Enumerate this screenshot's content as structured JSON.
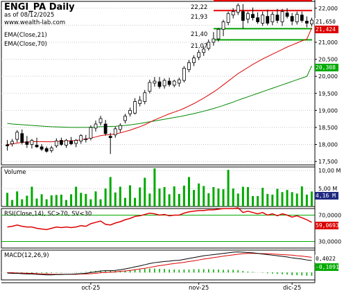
{
  "chart_data": {
    "type": "candlestick",
    "title": "ENGI_PA Daily",
    "as_of": "as of 08/12/2025",
    "source": "www.wealth-lab.com",
    "x_tick_labels": [
      "oct-25",
      "nov-25",
      "dic-25"
    ],
    "price_panel": {
      "ylim": [
        17400,
        22200
      ],
      "y_tick_labels": [
        "17,500",
        "18,000",
        "18,500",
        "19,000",
        "19,500",
        "20,000",
        "20,500",
        "21,000",
        "21,500",
        "22,000"
      ],
      "indicator_labels": [
        "EMA(Close,21)",
        "EMA(Close,70)"
      ],
      "level_labels": [
        "22,22",
        "21,93",
        "21,40",
        "21,07"
      ],
      "levels": [
        {
          "value": 22.22,
          "color": "#e60000"
        },
        {
          "value": 21.93,
          "color": "#e60000"
        },
        {
          "value": 21.4,
          "color": "#00a000"
        },
        {
          "value": 21.07,
          "color": "#00a000"
        }
      ],
      "last_price_tag": "21,650",
      "ema21_tag": "21,424",
      "ema70_tag": "20,308",
      "candles": [
        {
          "o": 17990,
          "h": 18130,
          "l": 17820,
          "c": 17960
        },
        {
          "o": 18020,
          "h": 18160,
          "l": 17940,
          "c": 18090
        },
        {
          "o": 18150,
          "h": 18420,
          "l": 18060,
          "c": 18360
        },
        {
          "o": 18320,
          "h": 18440,
          "l": 18000,
          "c": 18060
        },
        {
          "o": 18080,
          "h": 18250,
          "l": 17900,
          "c": 18000
        },
        {
          "o": 18000,
          "h": 18160,
          "l": 17880,
          "c": 18120
        },
        {
          "o": 17980,
          "h": 18200,
          "l": 17900,
          "c": 17930
        },
        {
          "o": 17930,
          "h": 18010,
          "l": 17810,
          "c": 17860
        },
        {
          "o": 17880,
          "h": 17940,
          "l": 17760,
          "c": 17800
        },
        {
          "o": 17820,
          "h": 17960,
          "l": 17760,
          "c": 17900
        },
        {
          "o": 17960,
          "h": 18180,
          "l": 17900,
          "c": 18100
        },
        {
          "o": 18120,
          "h": 18200,
          "l": 17960,
          "c": 18000
        },
        {
          "o": 17980,
          "h": 18160,
          "l": 17900,
          "c": 18120
        },
        {
          "o": 18100,
          "h": 18220,
          "l": 17980,
          "c": 18020
        },
        {
          "o": 18030,
          "h": 18160,
          "l": 17920,
          "c": 18120
        },
        {
          "o": 18100,
          "h": 18300,
          "l": 18020,
          "c": 18260
        },
        {
          "o": 18140,
          "h": 18280,
          "l": 18060,
          "c": 18160
        },
        {
          "o": 18180,
          "h": 18560,
          "l": 18120,
          "c": 18500
        },
        {
          "o": 18480,
          "h": 18700,
          "l": 18380,
          "c": 18600
        },
        {
          "o": 18640,
          "h": 18840,
          "l": 18560,
          "c": 18760
        },
        {
          "o": 18600,
          "h": 18720,
          "l": 18260,
          "c": 18320
        },
        {
          "o": 18240,
          "h": 18340,
          "l": 17720,
          "c": 18200
        },
        {
          "o": 18280,
          "h": 18520,
          "l": 18200,
          "c": 18460
        },
        {
          "o": 18440,
          "h": 18620,
          "l": 18360,
          "c": 18560
        },
        {
          "o": 18700,
          "h": 18900,
          "l": 18620,
          "c": 18830
        },
        {
          "o": 18900,
          "h": 19080,
          "l": 18820,
          "c": 19000
        },
        {
          "o": 18920,
          "h": 19360,
          "l": 18880,
          "c": 19260
        },
        {
          "o": 19200,
          "h": 19420,
          "l": 19120,
          "c": 19300
        },
        {
          "o": 19260,
          "h": 19600,
          "l": 19180,
          "c": 19520
        },
        {
          "o": 19560,
          "h": 19900,
          "l": 19500,
          "c": 19820
        },
        {
          "o": 19800,
          "h": 19980,
          "l": 19700,
          "c": 19860
        },
        {
          "o": 19840,
          "h": 19980,
          "l": 19640,
          "c": 19700
        },
        {
          "o": 19720,
          "h": 19940,
          "l": 19640,
          "c": 19880
        },
        {
          "o": 19860,
          "h": 19960,
          "l": 19700,
          "c": 19760
        },
        {
          "o": 19740,
          "h": 19900,
          "l": 19680,
          "c": 19860
        },
        {
          "o": 19800,
          "h": 19960,
          "l": 19700,
          "c": 19900
        },
        {
          "o": 19880,
          "h": 20300,
          "l": 19820,
          "c": 20240
        },
        {
          "o": 20200,
          "h": 20480,
          "l": 20120,
          "c": 20400
        },
        {
          "o": 20400,
          "h": 20620,
          "l": 20300,
          "c": 20540
        },
        {
          "o": 20560,
          "h": 20780,
          "l": 20480,
          "c": 20700
        },
        {
          "o": 20700,
          "h": 20880,
          "l": 20600,
          "c": 20800
        },
        {
          "o": 20820,
          "h": 21080,
          "l": 20760,
          "c": 21000
        },
        {
          "o": 21000,
          "h": 21300,
          "l": 20900,
          "c": 21100
        },
        {
          "o": 21100,
          "h": 21420,
          "l": 21020,
          "c": 21380
        },
        {
          "o": 21380,
          "h": 21660,
          "l": 21180,
          "c": 21600
        },
        {
          "o": 21580,
          "h": 21900,
          "l": 21500,
          "c": 21840
        },
        {
          "o": 21800,
          "h": 22000,
          "l": 21700,
          "c": 21900
        },
        {
          "o": 21880,
          "h": 22140,
          "l": 21800,
          "c": 22080
        },
        {
          "o": 21900,
          "h": 22120,
          "l": 21400,
          "c": 21640
        },
        {
          "o": 21680,
          "h": 21900,
          "l": 21560,
          "c": 21840
        },
        {
          "o": 21820,
          "h": 22020,
          "l": 21640,
          "c": 21720
        },
        {
          "o": 21720,
          "h": 21880,
          "l": 21540,
          "c": 21600
        },
        {
          "o": 21560,
          "h": 21900,
          "l": 21480,
          "c": 21800
        },
        {
          "o": 21760,
          "h": 21960,
          "l": 21500,
          "c": 21560
        },
        {
          "o": 21600,
          "h": 21900,
          "l": 21500,
          "c": 21820
        },
        {
          "o": 21800,
          "h": 21980,
          "l": 21560,
          "c": 21640
        },
        {
          "o": 21600,
          "h": 21980,
          "l": 21480,
          "c": 21900
        },
        {
          "o": 21860,
          "h": 22000,
          "l": 21700,
          "c": 21760
        },
        {
          "o": 21760,
          "h": 21860,
          "l": 21500,
          "c": 21620
        },
        {
          "o": 21600,
          "h": 21900,
          "l": 21520,
          "c": 21820
        },
        {
          "o": 21800,
          "h": 21900,
          "l": 21580,
          "c": 21640
        },
        {
          "o": 21620,
          "h": 21760,
          "l": 21440,
          "c": 21560
        },
        {
          "o": 21540,
          "h": 21720,
          "l": 21460,
          "c": 21650
        }
      ],
      "ema21": [
        18000,
        18015,
        18040,
        18060,
        18070,
        18080,
        18085,
        18085,
        18080,
        18080,
        18090,
        18095,
        18100,
        18110,
        18120,
        18140,
        18160,
        18190,
        18220,
        18260,
        18280,
        18290,
        18310,
        18340,
        18380,
        18420,
        18470,
        18520,
        18580,
        18650,
        18720,
        18780,
        18840,
        18900,
        18950,
        19000,
        19060,
        19130,
        19200,
        19280,
        19360,
        19450,
        19540,
        19640,
        19750,
        19860,
        19970,
        20080,
        20170,
        20260,
        20350,
        20430,
        20510,
        20580,
        20650,
        20720,
        20790,
        20860,
        20920,
        20980,
        21040,
        21090,
        21424
      ],
      "ema70": [
        18620,
        18600,
        18590,
        18580,
        18570,
        18560,
        18550,
        18540,
        18530,
        18520,
        18515,
        18510,
        18505,
        18500,
        18500,
        18500,
        18500,
        18505,
        18510,
        18520,
        18525,
        18530,
        18535,
        18545,
        18560,
        18575,
        18595,
        18615,
        18640,
        18665,
        18690,
        18715,
        18740,
        18765,
        18790,
        18815,
        18845,
        18875,
        18905,
        18940,
        18975,
        19015,
        19055,
        19100,
        19145,
        19195,
        19245,
        19300,
        19350,
        19400,
        19450,
        19500,
        19550,
        19600,
        19650,
        19700,
        19750,
        19800,
        19850,
        19900,
        19950,
        20000,
        20308
      ]
    },
    "volume_panel": {
      "label": "Volume",
      "y_tick_labels": [
        "10,00 M",
        "5,00 M"
      ],
      "last_tag": "4,16 M",
      "ymax": 11,
      "values": [
        3.8,
        1.8,
        4.2,
        2.0,
        3.0,
        5.5,
        2.2,
        3.4,
        2.0,
        3.1,
        3.2,
        3.3,
        1.8,
        3.4,
        5.5,
        3.8,
        3.5,
        2.0,
        4.2,
        2.0,
        5.0,
        8.2,
        3.9,
        5.5,
        2.4,
        5.9,
        2.4,
        5.3,
        8.0,
        3.6,
        10.6,
        5.0,
        5.4,
        3.4,
        5.6,
        3.5,
        5.8,
        8.2,
        4.6,
        6.4,
        5.7,
        3.7,
        5.4,
        5.0,
        4.8,
        10.2,
        5.0,
        3.6,
        5.5,
        5.4,
        2.9,
        2.9,
        5.2,
        3.5,
        3.3,
        4.9,
        4.0,
        4.6,
        4.0,
        3.6,
        5.6,
        3.3,
        4.16
      ]
    },
    "rsi_panel": {
      "label": "RSI(Close,14), SC>70, SV<30",
      "y_tick_labels": [
        "70,0000",
        "30,0000"
      ],
      "last_tag": "59,0693",
      "ylim": [
        20,
        80
      ],
      "values": [
        52,
        53,
        55,
        53,
        52,
        52,
        50,
        49,
        48,
        50,
        52,
        51,
        52,
        51,
        52,
        54,
        53,
        57,
        59,
        61,
        56,
        55,
        58,
        60,
        63,
        65,
        68,
        69,
        71,
        73,
        72,
        70,
        71,
        69,
        70,
        70,
        73,
        75,
        76,
        77,
        77,
        78,
        78,
        79,
        80,
        80,
        80,
        81,
        74,
        76,
        74,
        72,
        74,
        70,
        72,
        69,
        72,
        70,
        67,
        69,
        66,
        63,
        59
      ]
    },
    "macd_panel": {
      "label": "MACD(12,26,9)",
      "macd_tag": "0,4022",
      "hist_tag": "-0,1091",
      "ylim": [
        -0.25,
        0.75
      ],
      "macd": [
        -0.02,
        -0.03,
        -0.03,
        -0.04,
        -0.05,
        -0.05,
        -0.06,
        -0.07,
        -0.08,
        -0.08,
        -0.07,
        -0.07,
        -0.06,
        -0.06,
        -0.05,
        -0.04,
        -0.03,
        0.0,
        0.02,
        0.05,
        0.06,
        0.06,
        0.07,
        0.09,
        0.12,
        0.15,
        0.19,
        0.22,
        0.26,
        0.3,
        0.33,
        0.35,
        0.37,
        0.38,
        0.4,
        0.41,
        0.44,
        0.47,
        0.5,
        0.53,
        0.56,
        0.58,
        0.6,
        0.62,
        0.64,
        0.66,
        0.68,
        0.69,
        0.68,
        0.67,
        0.66,
        0.64,
        0.62,
        0.6,
        0.58,
        0.56,
        0.54,
        0.52,
        0.49,
        0.47,
        0.45,
        0.42,
        0.4
      ],
      "signal": [
        -0.01,
        -0.01,
        -0.02,
        -0.02,
        -0.03,
        -0.03,
        -0.04,
        -0.05,
        -0.05,
        -0.06,
        -0.06,
        -0.06,
        -0.06,
        -0.06,
        -0.06,
        -0.05,
        -0.05,
        -0.04,
        -0.03,
        -0.01,
        0.0,
        0.01,
        0.02,
        0.04,
        0.05,
        0.07,
        0.09,
        0.12,
        0.14,
        0.17,
        0.2,
        0.23,
        0.25,
        0.28,
        0.3,
        0.32,
        0.34,
        0.37,
        0.39,
        0.42,
        0.45,
        0.47,
        0.5,
        0.52,
        0.55,
        0.57,
        0.59,
        0.61,
        0.63,
        0.64,
        0.64,
        0.64,
        0.63,
        0.63,
        0.62,
        0.61,
        0.6,
        0.59,
        0.58,
        0.56,
        0.55,
        0.53,
        0.51
      ]
    }
  },
  "colors": {
    "up": "#ffffff",
    "down": "#000000",
    "ema21": "#dd0000",
    "ema70": "#008800",
    "volume": "#00aa00",
    "rsi": "#dd0000",
    "macd": "#000000",
    "signal": "#dd0000",
    "hist": "#00aa00",
    "tag_blue_bg": "#1f2a80",
    "tag_red_bg": "#dd0000",
    "tag_green_bg": "#00aa00"
  }
}
